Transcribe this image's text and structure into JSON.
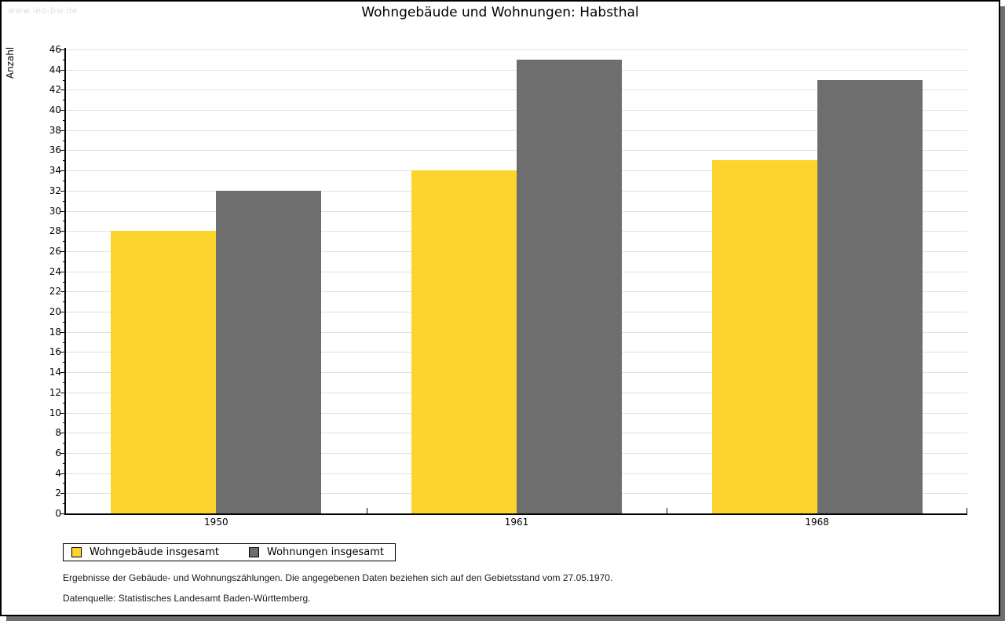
{
  "page": {
    "watermark": "www.leo-bw.de",
    "title": "Wohngebäude und Wohnungen: Habsthal"
  },
  "chart_data": {
    "type": "bar",
    "title": "Wohngebäude und Wohnungen: Habsthal",
    "categories": [
      "1950",
      "1961",
      "1968"
    ],
    "series": [
      {
        "name": "Wohngebäude insgesamt",
        "color": "#FDD42E",
        "values": [
          28,
          34,
          35
        ]
      },
      {
        "name": "Wohnungen insgesamt",
        "color": "#6E6E6E",
        "values": [
          32,
          45,
          43
        ]
      }
    ],
    "xlabel": "",
    "ylabel": "Anzahl",
    "ylim": [
      0,
      46
    ],
    "ytick_major_step": 2,
    "ytick_minor_step": 1,
    "grid": true,
    "legend_position": "bottom-left"
  },
  "footer": {
    "line1": "Ergebnisse der Gebäude- und Wohnungszählungen. Die angegebenen Daten beziehen sich auf den Gebietsstand vom 27.05.1970.",
    "line2": "Datenquelle: Statistisches Landesamt Baden-Württemberg."
  },
  "colors": {
    "series1": "#FDD42E",
    "series2": "#6E6E6E",
    "gridline": "#E0E0E0",
    "axis": "#000000",
    "shadow": "#6E6E6E",
    "watermark": "#DEDEDE",
    "background": "#FFFFFF"
  }
}
